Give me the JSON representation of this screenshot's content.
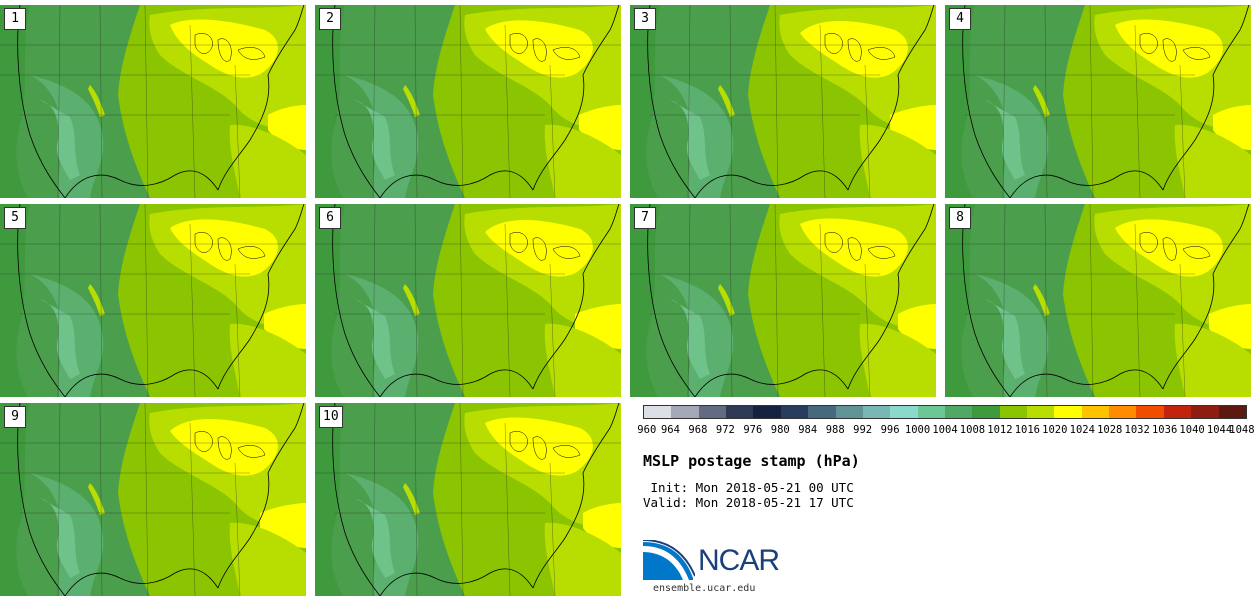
{
  "panels": [
    {
      "label": "1"
    },
    {
      "label": "2"
    },
    {
      "label": "3"
    },
    {
      "label": "4"
    },
    {
      "label": "5"
    },
    {
      "label": "6"
    },
    {
      "label": "7"
    },
    {
      "label": "8"
    },
    {
      "label": "9"
    },
    {
      "label": "10"
    }
  ],
  "colorbar": {
    "levels": [
      "960",
      "964",
      "968",
      "972",
      "976",
      "980",
      "984",
      "988",
      "992",
      "996",
      "1000",
      "1004",
      "1008",
      "1012",
      "1016",
      "1020",
      "1024",
      "1028",
      "1032",
      "1036",
      "1040",
      "1044",
      "1048"
    ],
    "colors": [
      "#dcdfe6",
      "#a3a7b6",
      "#636b82",
      "#2e3a56",
      "#142240",
      "#283d5e",
      "#46697e",
      "#609395",
      "#78b7b3",
      "#8bd9cb",
      "#6cc695",
      "#50a864",
      "#3f9a3e",
      "#8bc400",
      "#b7de00",
      "#ffff00",
      "#ffc200",
      "#ff8c00",
      "#ef4d00",
      "#c2230e",
      "#8d1d10",
      "#5c190f"
    ]
  },
  "title": "MSLP postage stamp (hPa)",
  "init": " Init: Mon 2018-05-21 00 UTC",
  "valid": "Valid: Mon 2018-05-21 17 UTC",
  "logo": {
    "text": "NCAR",
    "brand_color": "#1b3f7a",
    "accent_color": "#0077c8"
  },
  "site": "ensemble.ucar.edu",
  "map_colors": {
    "high": "#ffff00",
    "mid_high": "#b7de00",
    "mid": "#8bc400",
    "low": "#4b9e4b",
    "lower": "#5cb06f",
    "lowest": "#6fc28a"
  }
}
